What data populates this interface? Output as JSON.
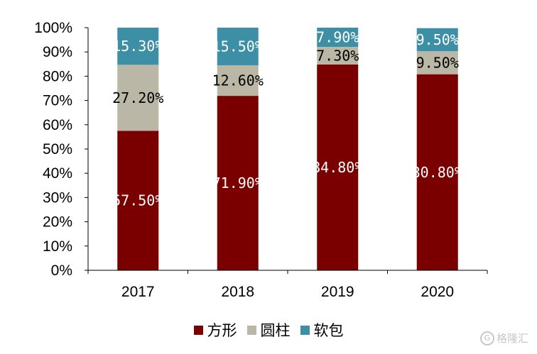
{
  "chart_data": {
    "type": "bar",
    "stacked": true,
    "categories": [
      "2017",
      "2018",
      "2019",
      "2020"
    ],
    "series": [
      {
        "name": "方形",
        "color": "#7a0000",
        "values": [
          57.5,
          71.9,
          84.8,
          80.8
        ],
        "labels": [
          "57.50%",
          "71.90%",
          "84.80%",
          "80.80%"
        ]
      },
      {
        "name": "圆柱",
        "color": "#bbb7a6",
        "values": [
          27.2,
          12.6,
          7.3,
          9.5
        ],
        "labels": [
          "27.20%",
          "12.60%",
          "7.30%",
          "9.50%"
        ]
      },
      {
        "name": "软包",
        "color": "#3c8fa5",
        "values": [
          15.3,
          15.5,
          7.9,
          9.5
        ],
        "labels": [
          "15.30%",
          "15.50%",
          "7.90%",
          "9.50%"
        ]
      }
    ],
    "yticks": [
      "0%",
      "10%",
      "20%",
      "30%",
      "40%",
      "50%",
      "60%",
      "70%",
      "80%",
      "90%",
      "100%"
    ],
    "ylim": [
      0,
      100
    ],
    "title": "",
    "xlabel": "",
    "ylabel": "",
    "legend_position": "bottom",
    "grid": false
  },
  "watermark": {
    "text": "格隆汇",
    "logo_text": "G"
  }
}
